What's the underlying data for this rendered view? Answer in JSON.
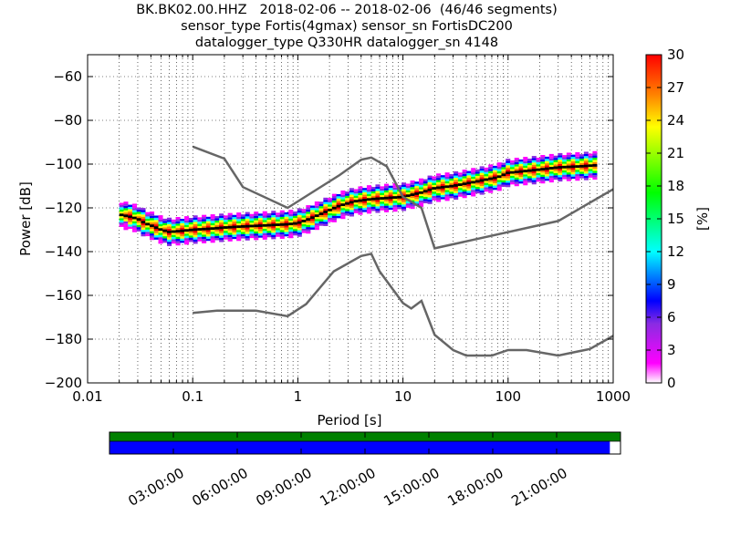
{
  "header": {
    "line1": "BK.BK02.00.HHZ   2018-02-06 -- 2018-02-06  (46/46 segments)",
    "line2": "sensor_type Fortis(4gmax) sensor_sn FortisDC200",
    "line3": "datalogger_type Q330HR datalogger_sn 4148"
  },
  "chart_data": [
    {
      "type": "heatmap",
      "title": "BK.BK02.00.HHZ   2018-02-06 -- 2018-02-06  (46/46 segments)",
      "xlabel": "Period [s]",
      "ylabel": "Power [dB]",
      "xscale": "log",
      "xlim": [
        0.01,
        1000
      ],
      "ylim": [
        -200,
        -50
      ],
      "x_ticks": [
        "0.01",
        "0.1",
        "1",
        "10",
        "100",
        "1000"
      ],
      "y_ticks": [
        "−200",
        "−180",
        "−160",
        "−140",
        "−120",
        "−100",
        "−80",
        "−60"
      ],
      "y_tick_values": [
        -200,
        -180,
        -160,
        -140,
        -120,
        -100,
        -80,
        -60
      ],
      "grid": true,
      "colorbar": {
        "label": "[%]",
        "ticks": [
          "0",
          "3",
          "6",
          "9",
          "12",
          "15",
          "18",
          "21",
          "24",
          "27",
          "30"
        ],
        "range": [
          0,
          30
        ],
        "colormap": [
          "#ffffff",
          "#ff00ff",
          "#8a2be2",
          "#0000ff",
          "#00ffff",
          "#00ff00",
          "#ffff00",
          "#ff8000",
          "#ff0000"
        ]
      },
      "psd_mode": {
        "period": [
          0.02,
          0.025,
          0.03,
          0.035,
          0.04,
          0.05,
          0.06,
          0.08,
          0.1,
          0.15,
          0.2,
          0.3,
          0.5,
          0.8,
          1.0,
          1.3,
          1.8,
          2.5,
          3.5,
          5,
          7,
          10,
          15,
          20,
          30,
          50,
          80,
          100,
          200,
          300,
          500,
          700
        ],
        "power": [
          -123,
          -124,
          -125,
          -127,
          -128,
          -130,
          -131,
          -130.5,
          -130,
          -129.5,
          -129,
          -128.5,
          -128,
          -127.5,
          -127,
          -125,
          -122,
          -119,
          -117,
          -116,
          -115.5,
          -115,
          -113,
          -111,
          -110,
          -108,
          -106,
          -104,
          -102.5,
          -101.5,
          -101,
          -100.5
        ],
        "spread_db": 6
      },
      "series": [
        {
          "name": "",
          "color": "#666666",
          "x": [
            0.1,
            0.2,
            0.3,
            0.8,
            2.5,
            4,
            5,
            7,
            10,
            15,
            20,
            300,
            1000
          ],
          "y": [
            -92,
            -97.5,
            -110.5,
            -120,
            -105,
            -98,
            -97,
            -101,
            -115,
            -120,
            -138.5,
            -126,
            -111.5
          ]
        },
        {
          "name": "",
          "color": "#666666",
          "x": [
            0.1,
            0.17,
            0.4,
            0.8,
            1.2,
            2.2,
            4,
            5,
            6,
            10,
            12,
            15,
            20,
            30,
            40,
            70,
            100,
            150,
            300,
            600,
            1000
          ],
          "y": [
            -168,
            -167,
            -167,
            -169.5,
            -164,
            -149,
            -142,
            -141,
            -149,
            -163.5,
            -166,
            -162.5,
            -178,
            -185,
            -187.5,
            -187.5,
            -185,
            -185,
            -187.5,
            -184.5,
            -178.5
          ]
        }
      ]
    },
    {
      "type": "timeline",
      "x_tick_labels": [
        "03:00:00",
        "06:00:00",
        "09:00:00",
        "12:00:00",
        "15:00:00",
        "18:00:00",
        "21:00:00"
      ],
      "x_tick_hours": [
        3,
        6,
        9,
        12,
        15,
        18,
        21
      ],
      "range_hours": [
        0,
        24
      ],
      "data_coverage": {
        "color": "#008000",
        "start_hour": 0,
        "end_hour": 24
      },
      "psd_coverage": {
        "color": "#0000ff",
        "start_hour": 0,
        "end_hour": 23.5
      }
    }
  ]
}
